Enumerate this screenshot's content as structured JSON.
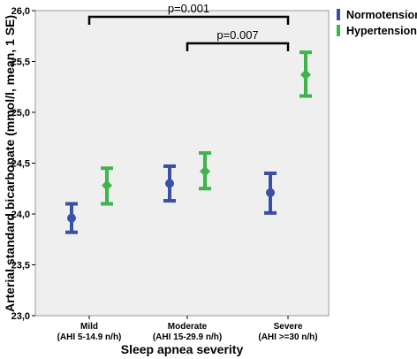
{
  "chart_data": {
    "type": "errorbar",
    "title": "",
    "xlabel": "Sleep apnea severity",
    "ylabel": "Arterial standard bicarbonate (mmol/l, mean, 1 SE)",
    "ylim": [
      23.0,
      26.0
    ],
    "yticks": [
      "23,0",
      "23,5",
      "24,0",
      "24,5",
      "25,0",
      "25,5",
      "26,0"
    ],
    "grid": false,
    "legend_position": "top-right",
    "categories": [
      {
        "line1": "Mild",
        "line2": "(AHI 5-14.9 n/h)"
      },
      {
        "line1": "Moderate",
        "line2": "(AHI 15-29.9 n/h)"
      },
      {
        "line1": "Severe",
        "line2": "(AHI >=30 n/h)"
      }
    ],
    "series": [
      {
        "name": "Normotension",
        "color": "#3a4fa8",
        "marker": "circle",
        "mean": [
          23.96,
          24.3,
          24.21
        ],
        "lower": [
          23.82,
          24.13,
          24.01
        ],
        "upper": [
          24.1,
          24.47,
          24.4
        ]
      },
      {
        "name": "Hypertension",
        "color": "#3db54a",
        "marker": "diamond",
        "mean": [
          24.28,
          24.42,
          25.37
        ],
        "lower": [
          24.1,
          24.25,
          25.16
        ],
        "upper": [
          24.45,
          24.6,
          25.59
        ]
      }
    ],
    "annotations": [
      {
        "text": "p=0.001",
        "from_category": 0,
        "to_category": 2
      },
      {
        "text": "p=0.007",
        "from_category": 1,
        "to_category": 2
      }
    ]
  }
}
